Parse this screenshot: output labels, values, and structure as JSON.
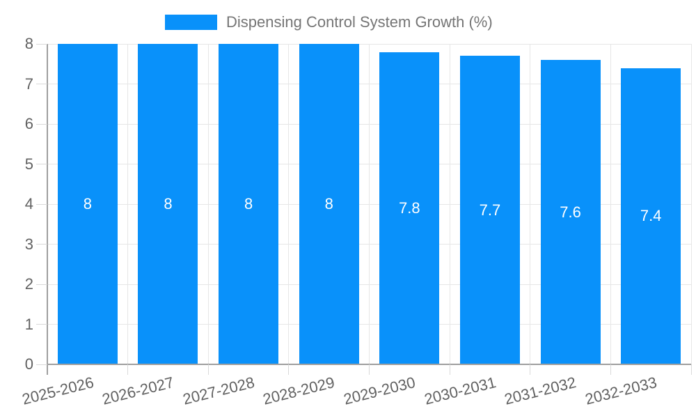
{
  "chart_data": {
    "type": "bar",
    "title": "Dispensing Control System Growth (%)",
    "categories": [
      "2025-2026",
      "2026-2027",
      "2027-2028",
      "2028-2029",
      "2029-2030",
      "2030-2031",
      "2031-2032",
      "2032-2033"
    ],
    "series": [
      {
        "name": "Dispensing Control System Growth (%)",
        "values": [
          8,
          8,
          8,
          8,
          7.8,
          7.7,
          7.6,
          7.4
        ]
      }
    ],
    "bar_labels": [
      "8",
      "8",
      "8",
      "8",
      "7.8",
      "7.7",
      "7.6",
      "7.4"
    ],
    "xlabel": "",
    "ylabel": "",
    "y_ticks": [
      0,
      1,
      2,
      3,
      4,
      5,
      6,
      7,
      8
    ],
    "ylim": [
      0,
      8
    ],
    "grid": true,
    "vertical_category_gridlines": true,
    "legend_position": "top",
    "x_tick_label_rotation_deg": -14,
    "colors": {
      "bar": "#0991fa",
      "bar_label_text": "#ffffff",
      "gridline": "#e6e6e6",
      "axis_line": "#9e9e9e",
      "minor_tick": "#d9d9d9",
      "axis_label_text": "#616161",
      "legend_text": "#757575",
      "background": "#ffffff"
    }
  }
}
